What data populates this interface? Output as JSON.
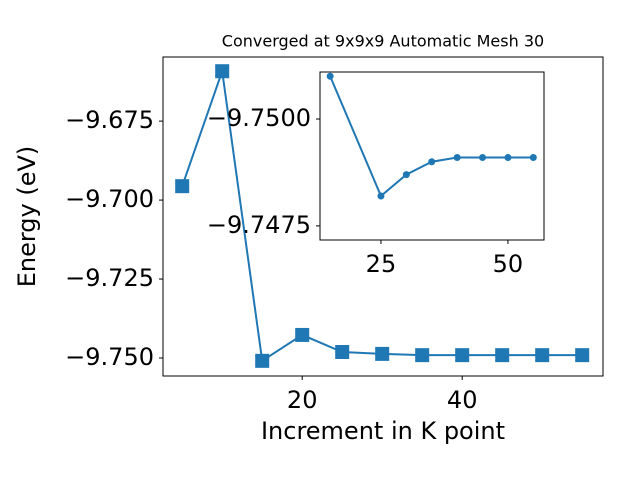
{
  "chart_data": [
    {
      "type": "line",
      "title": "Converged at 9x9x9 Automatic Mesh 30",
      "x_label": "Increment in K point",
      "y_label": "Energy (eV)",
      "x": [
        5,
        10,
        15,
        20,
        25,
        30,
        35,
        40,
        45,
        50,
        55
      ],
      "series": [
        {
          "name": "Energy",
          "color": "#1f77b4",
          "marker": "square",
          "values": [
            -9.6956,
            -9.6592,
            -9.7509,
            -9.7427,
            -9.7481,
            -9.7487,
            -9.7491,
            -9.7491,
            -9.7491,
            -9.7491,
            -9.7491
          ]
        }
      ],
      "xlim": [
        2.6,
        57.6
      ],
      "ylim": [
        -9.7557,
        -9.6547
      ],
      "xticks": [
        20,
        40
      ],
      "yticks": [
        {
          "value": -9.75,
          "label": "−9.750"
        },
        {
          "value": -9.725,
          "label": "−9.725"
        },
        {
          "value": -9.7,
          "label": "−9.700"
        },
        {
          "value": -9.675,
          "label": "−9.675"
        }
      ],
      "legend": false
    },
    {
      "type": "line",
      "x": [
        15,
        25,
        30,
        35,
        40,
        45,
        50,
        55
      ],
      "series": [
        {
          "name": "Energy",
          "color": "#1f77b4",
          "marker": "circle",
          "values": [
            -9.751,
            -9.7482,
            -9.7487,
            -9.749,
            -9.7491,
            -9.7491,
            -9.7491,
            -9.7491
          ]
        }
      ],
      "xlim": [
        13,
        57.1
      ],
      "ylim": [
        -9.74717,
        -9.7511
      ],
      "xticks": [
        25,
        50
      ],
      "yticks": [
        {
          "value": -9.7475,
          "label": "−9.7475"
        },
        {
          "value": -9.75,
          "label": "−9.7500"
        }
      ],
      "legend": false
    }
  ]
}
